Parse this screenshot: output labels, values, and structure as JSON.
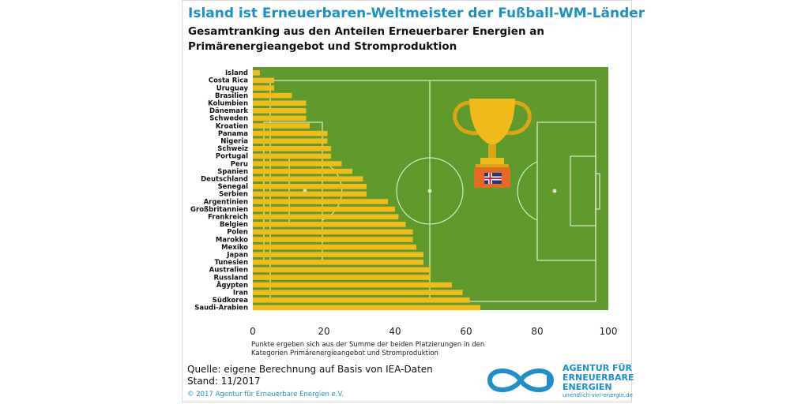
{
  "header": {
    "title": "Island ist Erneuerbaren-Weltmeister der Fußball-WM-Länder",
    "subtitle_line1": "Gesamtranking aus den Anteilen Erneuerbarer Energien an",
    "subtitle_line2": "Primärenergieangebot und Stromproduktion"
  },
  "chart_data": {
    "type": "bar",
    "orientation": "horizontal",
    "categories": [
      "Island",
      "Costa Rica",
      "Uruguay",
      "Brasilien",
      "Kolumbien",
      "Dänemark",
      "Schweden",
      "Kroatien",
      "Panama",
      "Nigeria",
      "Schweiz",
      "Portugal",
      "Peru",
      "Spanien",
      "Deutschland",
      "Senegal",
      "Serbien",
      "Argentinien",
      "Großbritannien",
      "Frankreich",
      "Belgien",
      "Polen",
      "Marokko",
      "Mexiko",
      "Japan",
      "Tunesien",
      "Australien",
      "Russland",
      "Ägypten",
      "Iran",
      "Südkorea",
      "Saudi-Arabien"
    ],
    "values": [
      2,
      6,
      6,
      11,
      15,
      15,
      15,
      16,
      21,
      21,
      22,
      22,
      25,
      28,
      31,
      32,
      32,
      38,
      40,
      41,
      43,
      45,
      45,
      46,
      48,
      48,
      50,
      50,
      56,
      59,
      61,
      64
    ],
    "xlim": [
      0,
      100
    ],
    "xticks": [
      0,
      20,
      40,
      60,
      80,
      100
    ],
    "bar_color": "#f2bb1c",
    "background": "soccer-field",
    "field_color": "#5f9a2c",
    "decoration": "trophy-with-iceland-flag"
  },
  "notes": {
    "line1": "Punkte ergeben sich aus der Summe der beiden Platzierungen in den",
    "line2": "Kategorien Primärenergieangebot und Stromproduktion"
  },
  "footer": {
    "source": "Quelle: eigene Berechnung auf Basis von IEA-Daten",
    "date": "Stand: 11/2017",
    "copyright": "© 2017 Agentur für Erneuerbare Energien e.V."
  },
  "logo": {
    "line1": "AGENTUR FÜR",
    "line2": "ERNEUERBARE",
    "line3": "ENERGIEN",
    "url": "unendlich-viel-energie.de",
    "color": "#1e8fc9"
  }
}
